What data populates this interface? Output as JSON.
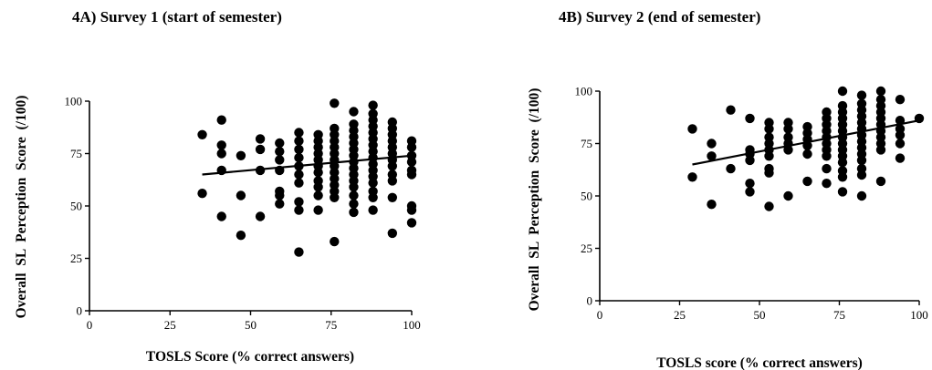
{
  "chart_data": [
    {
      "type": "scatter",
      "title": "4A)  Survey 1 (start of semester)",
      "xlabel": "TOSLS Score (% correct answers)",
      "ylabel": "Overall  SL  Perception  Score  (/100)",
      "xlim": [
        0,
        100
      ],
      "ylim": [
        0,
        100
      ],
      "xticks": [
        "0",
        "25",
        "50",
        "75",
        "100"
      ],
      "yticks": [
        "0",
        "25",
        "50",
        "75",
        "100"
      ],
      "grid": false,
      "trendline": {
        "x": [
          35,
          100
        ],
        "y": [
          65,
          74
        ]
      },
      "points": [
        [
          35,
          84
        ],
        [
          35,
          56
        ],
        [
          41,
          91
        ],
        [
          41,
          79
        ],
        [
          41,
          75
        ],
        [
          41,
          67
        ],
        [
          41,
          45
        ],
        [
          47,
          74
        ],
        [
          47,
          55
        ],
        [
          47,
          36
        ],
        [
          53,
          82
        ],
        [
          53,
          77
        ],
        [
          53,
          67
        ],
        [
          53,
          45
        ],
        [
          59,
          80
        ],
        [
          59,
          76
        ],
        [
          59,
          72
        ],
        [
          59,
          67
        ],
        [
          59,
          57
        ],
        [
          59,
          55
        ],
        [
          59,
          51
        ],
        [
          65,
          85
        ],
        [
          65,
          81
        ],
        [
          65,
          77
        ],
        [
          65,
          73
        ],
        [
          65,
          69
        ],
        [
          65,
          65
        ],
        [
          65,
          61
        ],
        [
          65,
          52
        ],
        [
          65,
          48
        ],
        [
          65,
          28
        ],
        [
          71,
          84
        ],
        [
          71,
          81
        ],
        [
          71,
          78
        ],
        [
          71,
          75
        ],
        [
          71,
          72
        ],
        [
          71,
          69
        ],
        [
          71,
          66
        ],
        [
          71,
          62
        ],
        [
          71,
          59
        ],
        [
          71,
          55
        ],
        [
          71,
          48
        ],
        [
          76,
          99
        ],
        [
          76,
          87
        ],
        [
          76,
          84
        ],
        [
          76,
          81
        ],
        [
          76,
          78
        ],
        [
          76,
          75
        ],
        [
          76,
          72
        ],
        [
          76,
          69
        ],
        [
          76,
          66
        ],
        [
          76,
          63
        ],
        [
          76,
          60
        ],
        [
          76,
          57
        ],
        [
          76,
          54
        ],
        [
          76,
          33
        ],
        [
          82,
          95
        ],
        [
          82,
          89
        ],
        [
          82,
          86
        ],
        [
          82,
          83
        ],
        [
          82,
          80
        ],
        [
          82,
          77
        ],
        [
          82,
          74
        ],
        [
          82,
          71
        ],
        [
          82,
          68
        ],
        [
          82,
          65
        ],
        [
          82,
          62
        ],
        [
          82,
          59
        ],
        [
          82,
          55
        ],
        [
          82,
          51
        ],
        [
          82,
          47
        ],
        [
          88,
          98
        ],
        [
          88,
          94
        ],
        [
          88,
          91
        ],
        [
          88,
          88
        ],
        [
          88,
          85
        ],
        [
          88,
          82
        ],
        [
          88,
          79
        ],
        [
          88,
          76
        ],
        [
          88,
          73
        ],
        [
          88,
          70
        ],
        [
          88,
          67
        ],
        [
          88,
          64
        ],
        [
          88,
          61
        ],
        [
          88,
          57
        ],
        [
          88,
          54
        ],
        [
          88,
          48
        ],
        [
          94,
          90
        ],
        [
          94,
          87
        ],
        [
          94,
          84
        ],
        [
          94,
          81
        ],
        [
          94,
          78
        ],
        [
          94,
          75
        ],
        [
          94,
          72
        ],
        [
          94,
          69
        ],
        [
          94,
          65
        ],
        [
          94,
          62
        ],
        [
          94,
          54
        ],
        [
          94,
          37
        ],
        [
          100,
          81
        ],
        [
          100,
          78
        ],
        [
          100,
          74
        ],
        [
          100,
          71
        ],
        [
          100,
          67
        ],
        [
          100,
          65
        ],
        [
          100,
          50
        ],
        [
          100,
          48
        ],
        [
          100,
          42
        ]
      ]
    },
    {
      "type": "scatter",
      "title": "4B)  Survey 2 (end of semester)",
      "xlabel": "TOSLS score (% correct answers)",
      "ylabel": "Overall  SL  Perception  Score  (/100)",
      "xlim": [
        0,
        100
      ],
      "ylim": [
        0,
        100
      ],
      "xticks": [
        "0",
        "25",
        "50",
        "75",
        "100"
      ],
      "yticks": [
        "0",
        "25",
        "50",
        "75",
        "100"
      ],
      "grid": false,
      "trendline": {
        "x": [
          29,
          100
        ],
        "y": [
          65,
          86
        ]
      },
      "points": [
        [
          29,
          82
        ],
        [
          29,
          59
        ],
        [
          35,
          75
        ],
        [
          35,
          69
        ],
        [
          35,
          46
        ],
        [
          41,
          91
        ],
        [
          41,
          63
        ],
        [
          47,
          87
        ],
        [
          47,
          72
        ],
        [
          47,
          70
        ],
        [
          47,
          67
        ],
        [
          47,
          56
        ],
        [
          47,
          52
        ],
        [
          53,
          85
        ],
        [
          53,
          82
        ],
        [
          53,
          78
        ],
        [
          53,
          75
        ],
        [
          53,
          72
        ],
        [
          53,
          69
        ],
        [
          53,
          63
        ],
        [
          53,
          61
        ],
        [
          53,
          45
        ],
        [
          59,
          85
        ],
        [
          59,
          82
        ],
        [
          59,
          78
        ],
        [
          59,
          75
        ],
        [
          59,
          72
        ],
        [
          59,
          50
        ],
        [
          65,
          83
        ],
        [
          65,
          80
        ],
        [
          65,
          77
        ],
        [
          65,
          74
        ],
        [
          65,
          70
        ],
        [
          65,
          57
        ],
        [
          71,
          90
        ],
        [
          71,
          87
        ],
        [
          71,
          84
        ],
        [
          71,
          81
        ],
        [
          71,
          78
        ],
        [
          71,
          75
        ],
        [
          71,
          72
        ],
        [
          71,
          69
        ],
        [
          71,
          63
        ],
        [
          71,
          56
        ],
        [
          76,
          100
        ],
        [
          76,
          93
        ],
        [
          76,
          90
        ],
        [
          76,
          87
        ],
        [
          76,
          84
        ],
        [
          76,
          81
        ],
        [
          76,
          78
        ],
        [
          76,
          75
        ],
        [
          76,
          72
        ],
        [
          76,
          69
        ],
        [
          76,
          66
        ],
        [
          76,
          62
        ],
        [
          76,
          59
        ],
        [
          76,
          52
        ],
        [
          82,
          98
        ],
        [
          82,
          94
        ],
        [
          82,
          91
        ],
        [
          82,
          88
        ],
        [
          82,
          85
        ],
        [
          82,
          82
        ],
        [
          82,
          79
        ],
        [
          82,
          76
        ],
        [
          82,
          73
        ],
        [
          82,
          70
        ],
        [
          82,
          67
        ],
        [
          82,
          63
        ],
        [
          82,
          60
        ],
        [
          82,
          50
        ],
        [
          88,
          100
        ],
        [
          88,
          96
        ],
        [
          88,
          93
        ],
        [
          88,
          90
        ],
        [
          88,
          87
        ],
        [
          88,
          84
        ],
        [
          88,
          81
        ],
        [
          88,
          78
        ],
        [
          88,
          75
        ],
        [
          88,
          72
        ],
        [
          88,
          57
        ],
        [
          94,
          96
        ],
        [
          94,
          86
        ],
        [
          94,
          82
        ],
        [
          94,
          79
        ],
        [
          94,
          75
        ],
        [
          94,
          68
        ],
        [
          100,
          87
        ]
      ]
    }
  ]
}
